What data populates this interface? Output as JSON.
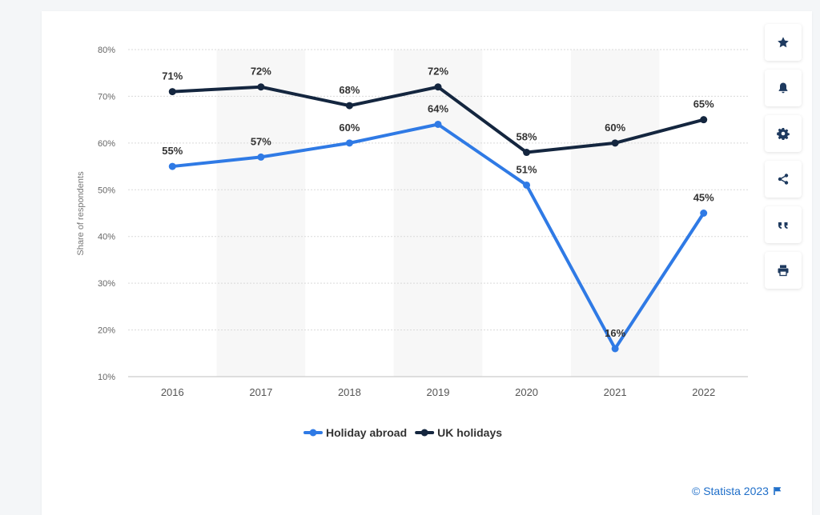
{
  "chart_data": {
    "type": "line",
    "categories": [
      "2016",
      "2017",
      "2018",
      "2019",
      "2020",
      "2021",
      "2022"
    ],
    "series": [
      {
        "name": "Holiday abroad",
        "values": [
          55,
          57,
          60,
          64,
          51,
          16,
          45
        ],
        "color": "#2f7ae5"
      },
      {
        "name": "UK holidays",
        "values": [
          71,
          72,
          68,
          72,
          58,
          60,
          65
        ],
        "color": "#14263f"
      }
    ],
    "value_labels": {
      "Holiday abroad": [
        "55%",
        "57%",
        "60%",
        "64%",
        "51%",
        "16%",
        "45%"
      ],
      "UK holidays": [
        "71%",
        "72%",
        "68%",
        "72%",
        "58%",
        "60%",
        "65%"
      ]
    },
    "ylabel": "Share of respondents",
    "xlabel": "",
    "ylim": [
      10,
      80
    ],
    "yticks": [
      "10%",
      "20%",
      "30%",
      "40%",
      "50%",
      "60%",
      "70%",
      "80%"
    ],
    "grid": true,
    "legend_position": "bottom-center"
  },
  "toolbar": {
    "icons": [
      "star-icon",
      "bell-icon",
      "gear-icon",
      "share-icon",
      "quote-icon",
      "print-icon"
    ]
  },
  "footer": {
    "credit": "© Statista 2023"
  },
  "colors": {
    "accent": "#1e6ec9",
    "band": "#f7f7f7",
    "grid": "#d9d9d9"
  }
}
